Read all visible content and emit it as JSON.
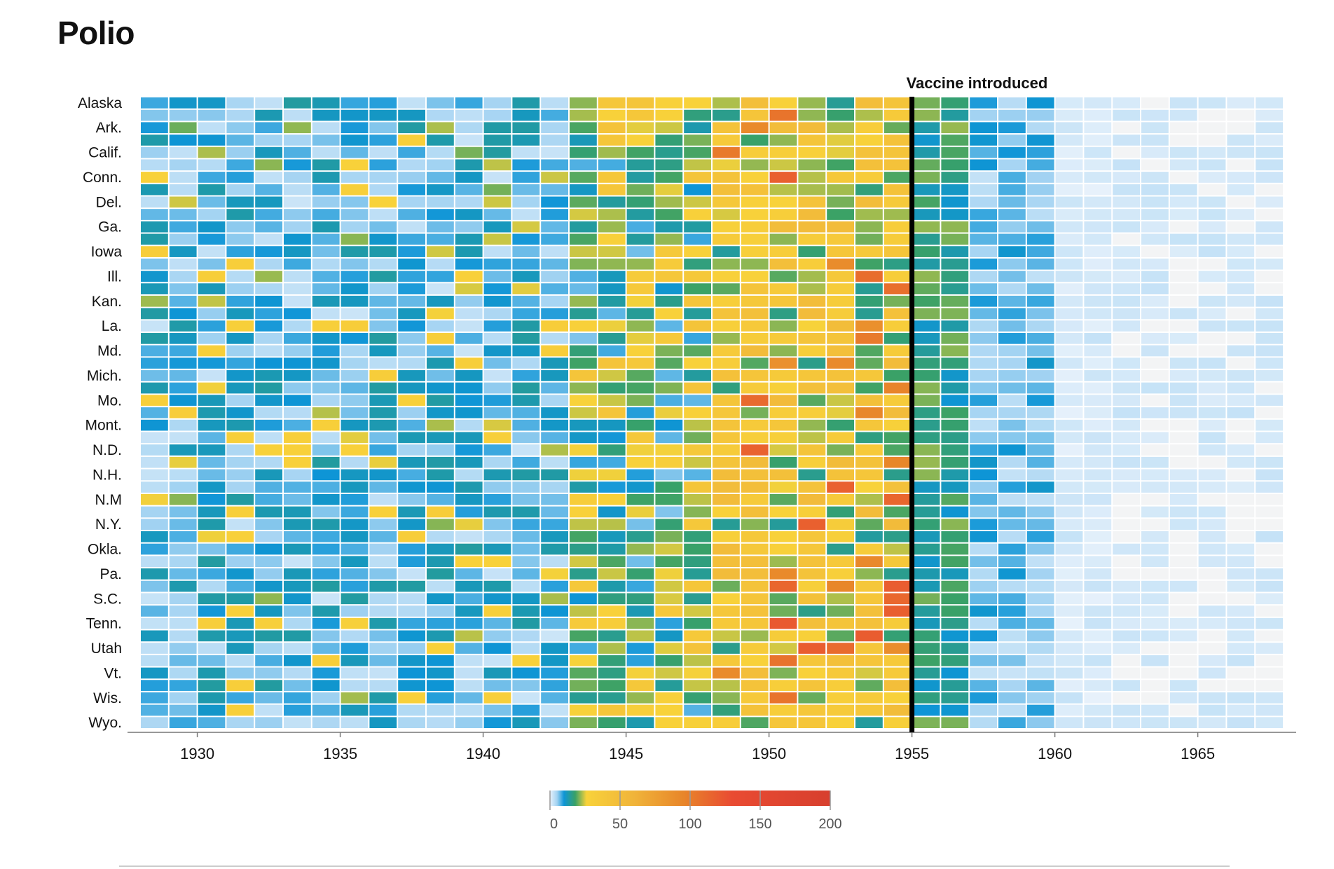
{
  "title": "Polio",
  "chart_data": {
    "type": "heatmap",
    "title": "Polio",
    "x_start_year": 1928,
    "x_end_year": 1968,
    "x_ticks": [
      1930,
      1935,
      1940,
      1945,
      1950,
      1955,
      1960,
      1965
    ],
    "row_labels_shown": [
      "Alaska",
      "Ark.",
      "Calif.",
      "Conn.",
      "Del.",
      "Ga.",
      "Iowa",
      "Ill.",
      "Kan.",
      "La.",
      "Md.",
      "Mich.",
      "Mo.",
      "Mont.",
      "N.D.",
      "N.H.",
      "N.M",
      "N.Y.",
      "Okla.",
      "Pa.",
      "S.C.",
      "Tenn.",
      "Utah",
      "Vt.",
      "Wis.",
      "Wyo."
    ],
    "rows_count": 51,
    "annotation": {
      "year": 1955,
      "label": "Vaccine introduced"
    },
    "color_scale": {
      "domain": [
        0,
        200
      ],
      "ticks": [
        0,
        50,
        100,
        150,
        200
      ],
      "stops": [
        {
          "value": 0,
          "color": "#e7f1fb"
        },
        {
          "value": 5,
          "color": "#a3d3f2"
        },
        {
          "value": 10,
          "color": "#0e95d6"
        },
        {
          "value": 18,
          "color": "#39a167"
        },
        {
          "value": 26,
          "color": "#f8d23a"
        },
        {
          "value": 60,
          "color": "#f0b43a"
        },
        {
          "value": 95,
          "color": "#e8862a"
        },
        {
          "value": 130,
          "color": "#e94b32"
        },
        {
          "value": 200,
          "color": "#d73f2e"
        }
      ]
    },
    "grid": false,
    "legend_position": "bottom-center"
  }
}
